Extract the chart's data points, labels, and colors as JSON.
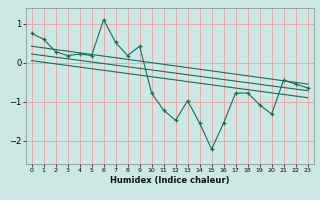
{
  "title": "",
  "xlabel": "Humidex (Indice chaleur)",
  "ylabel": "",
  "bg_color": "#cce8e4",
  "grid_color": "#e8a0a0",
  "line_color": "#1a6b5a",
  "xlim": [
    -0.5,
    23.5
  ],
  "ylim": [
    -2.6,
    1.4
  ],
  "yticks": [
    1,
    0,
    -1,
    -2
  ],
  "xticks": [
    0,
    1,
    2,
    3,
    4,
    5,
    6,
    7,
    8,
    9,
    10,
    11,
    12,
    13,
    14,
    15,
    16,
    17,
    18,
    19,
    20,
    21,
    22,
    23
  ],
  "series": [
    {
      "x": [
        0,
        1,
        2,
        3,
        4,
        5,
        6,
        7,
        8,
        9,
        10,
        11,
        12,
        13,
        14,
        15,
        16,
        17,
        18,
        19,
        20,
        21,
        22,
        23
      ],
      "y": [
        0.75,
        0.6,
        0.28,
        0.18,
        0.22,
        0.18,
        1.1,
        0.52,
        0.18,
        0.42,
        -0.78,
        -1.22,
        -1.48,
        -0.98,
        -1.55,
        -2.22,
        -1.55,
        -0.78,
        -0.78,
        -1.08,
        -1.32,
        -0.45,
        -0.55,
        -0.65
      ],
      "marker": true
    },
    {
      "x": [
        0,
        23
      ],
      "y": [
        0.42,
        -0.55
      ],
      "marker": false
    },
    {
      "x": [
        0,
        23
      ],
      "y": [
        0.22,
        -0.72
      ],
      "marker": false
    },
    {
      "x": [
        0,
        23
      ],
      "y": [
        0.05,
        -0.9
      ],
      "marker": false
    }
  ]
}
